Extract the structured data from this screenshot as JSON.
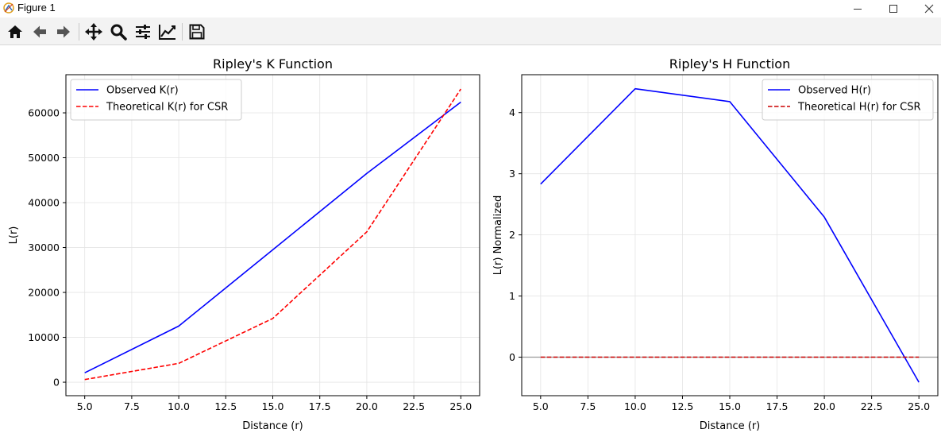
{
  "window": {
    "title": "Figure 1",
    "controls": {
      "minimize": "minimize-icon",
      "maximize": "maximize-icon",
      "close": "close-icon"
    }
  },
  "toolbar": {
    "buttons": [
      {
        "name": "home-button",
        "icon": "home-icon"
      },
      {
        "name": "back-button",
        "icon": "arrow-left-icon"
      },
      {
        "name": "forward-button",
        "icon": "arrow-right-icon"
      },
      {
        "name": "pan-button",
        "icon": "move-icon"
      },
      {
        "name": "zoom-button",
        "icon": "magnifier-icon"
      },
      {
        "name": "configure-subplots-button",
        "icon": "sliders-icon"
      },
      {
        "name": "edit-axis-button",
        "icon": "line-chart-icon"
      },
      {
        "name": "save-button",
        "icon": "floppy-disk-icon"
      }
    ]
  },
  "chart_data": [
    {
      "type": "line",
      "title": "Ripley's K Function",
      "xlabel": "Distance (r)",
      "ylabel": "L(r)",
      "x": [
        5.0,
        10.0,
        15.0,
        20.0,
        25.0
      ],
      "xlim": [
        4.0,
        26.0
      ],
      "ylim": [
        -3000,
        68500
      ],
      "xticks": [
        5.0,
        7.5,
        10.0,
        12.5,
        15.0,
        17.5,
        20.0,
        22.5,
        25.0
      ],
      "xtick_labels": [
        "5.0",
        "7.5",
        "10.0",
        "12.5",
        "15.0",
        "17.5",
        "20.0",
        "22.5",
        "25.0"
      ],
      "yticks": [
        0,
        10000,
        20000,
        30000,
        40000,
        50000,
        60000
      ],
      "ytick_labels": [
        "0",
        "10000",
        "20000",
        "30000",
        "40000",
        "50000",
        "60000"
      ],
      "grid": true,
      "legend_position": "top-left",
      "hline": null,
      "series": [
        {
          "name": "Observed K(r)",
          "values": [
            2100,
            12500,
            29500,
            46500,
            62400
          ],
          "color": "#0000ff",
          "style": "solid"
        },
        {
          "name": "Theoretical K(r) for CSR",
          "values": [
            600,
            4200,
            14200,
            33500,
            65300
          ],
          "color": "#ff0000",
          "style": "dashed"
        }
      ]
    },
    {
      "type": "line",
      "title": "Ripley's H Function",
      "xlabel": "Distance (r)",
      "ylabel": "L(r) Normalized",
      "x": [
        5.0,
        10.0,
        15.0,
        20.0,
        25.0
      ],
      "xlim": [
        4.0,
        26.0
      ],
      "ylim": [
        -0.63,
        4.62
      ],
      "xticks": [
        5.0,
        7.5,
        10.0,
        12.5,
        15.0,
        17.5,
        20.0,
        22.5,
        25.0
      ],
      "xtick_labels": [
        "5.0",
        "7.5",
        "10.0",
        "12.5",
        "15.0",
        "17.5",
        "20.0",
        "22.5",
        "25.0"
      ],
      "yticks": [
        0,
        1,
        2,
        3,
        4
      ],
      "ytick_labels": [
        "0",
        "1",
        "2",
        "3",
        "4"
      ],
      "grid": true,
      "legend_position": "top-right",
      "hline": 0,
      "series": [
        {
          "name": "Observed H(r)",
          "values": [
            2.83,
            4.39,
            4.18,
            2.29,
            -0.41
          ],
          "color": "#0000ff",
          "style": "solid"
        },
        {
          "name": "Theoretical H(r) for CSR",
          "values": [
            0,
            0,
            0,
            0,
            0
          ],
          "color": "#cc0000",
          "style": "dashed"
        }
      ]
    }
  ]
}
